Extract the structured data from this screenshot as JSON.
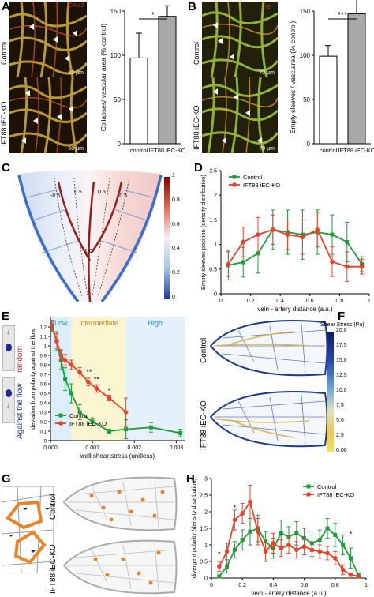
{
  "panels": {
    "A": {
      "letter": "A",
      "image_label_top": "ICAM2",
      "row_labels": [
        "Control",
        "IFT88 iEC-KO"
      ],
      "scalebar_labels": [
        "50 µm",
        "50 µm"
      ],
      "chart": {
        "ylabel": "Collapses/ vascular area (% control)",
        "categories": [
          "control",
          "IFT88 iEC-KO"
        ],
        "values": [
          97,
          144
        ],
        "errors": [
          28,
          12
        ],
        "ylim": [
          0,
          150
        ],
        "yticks": [
          "0",
          "50",
          "100",
          "150"
        ],
        "significance": "*",
        "colors": [
          "#ffffff",
          "#a8a8a8"
        ]
      }
    },
    "B": {
      "letter": "B",
      "image_label_top": "IB",
      "row_labels": [
        "Control",
        "IFT88 iEC-KO"
      ],
      "scalebar_labels": [
        "70 µm",
        "70 µm"
      ],
      "chart": {
        "ylabel": "Empty sleeves / vasc.area (% control)",
        "categories": [
          "control",
          "IFT88 iEC-KO"
        ],
        "values": [
          99,
          147
        ],
        "errors": [
          12,
          16
        ],
        "ylim": [
          0,
          150
        ],
        "yticks": [
          "0",
          "50",
          "100",
          "150"
        ],
        "significance": "***",
        "colors": [
          "#ffffff",
          "#a8a8a8"
        ]
      }
    },
    "C": {
      "letter": "C",
      "contour_labels": [
        "-0.5",
        "0.5",
        "0.5",
        "-0.5",
        "1.0"
      ],
      "colorbar_ticks": [
        "1",
        "0.8",
        "0.6",
        "0.4",
        "0.2",
        "0"
      ]
    },
    "D": {
      "letter": "D",
      "chart_data": {
        "type": "line",
        "ylabel": "Empty sleeves position (density distribution)",
        "xlabel": "vein - artery distance (a.u.)",
        "xlim": [
          0,
          1
        ],
        "ylim": [
          0,
          2.5
        ],
        "xticks": [
          "0",
          "0.2",
          "0.4",
          "0.6",
          "0.8",
          "1"
        ],
        "yticks": [
          "0",
          "0.5",
          "1",
          "1.5",
          "2",
          "2.5"
        ],
        "legend": "top-left",
        "series": [
          {
            "name": "Control",
            "color": "#1e9b3a",
            "marker": "square",
            "x": [
              0.05,
              0.15,
              0.25,
              0.35,
              0.45,
              0.55,
              0.65,
              0.75,
              0.85,
              0.95
            ],
            "y": [
              0.58,
              0.64,
              0.82,
              1.3,
              1.25,
              1.2,
              1.25,
              1.2,
              1.05,
              0.6
            ],
            "err": [
              0.3,
              0.3,
              0.4,
              0.4,
              0.45,
              0.5,
              0.45,
              0.4,
              0.4,
              0.15
            ]
          },
          {
            "name": "IFT88 iEC-KO",
            "color": "#e8402a",
            "marker": "circle",
            "x": [
              0.05,
              0.15,
              0.25,
              0.35,
              0.45,
              0.55,
              0.65,
              0.75,
              0.85,
              0.95
            ],
            "y": [
              0.6,
              1.05,
              1.2,
              1.3,
              1.2,
              1.15,
              1.3,
              0.65,
              0.55,
              0.55
            ],
            "err": [
              0.25,
              0.3,
              0.35,
              0.3,
              0.3,
              0.35,
              0.35,
              0.3,
              0.3,
              0.15
            ]
          }
        ]
      }
    },
    "E": {
      "letter": "E",
      "side_labels": [
        "random",
        "Against the flow"
      ],
      "zone_labels": [
        "Low",
        "intermediate",
        "High"
      ],
      "chart_data": {
        "type": "line",
        "ylabel": "deviation from polarity against the flow",
        "xlabel": "wall shear stress (unitless)",
        "xlim": [
          0,
          0.0032
        ],
        "ylim": [
          0,
          1.3
        ],
        "xticks": [
          "0.000",
          "0.001",
          "0.002",
          "0.003"
        ],
        "yticks": [
          "0",
          "0.1",
          "0.2",
          "0.3",
          "0.4",
          "0.5",
          "0.6",
          "0.7",
          "0.8",
          "0.9",
          "1",
          "1.1",
          "1.2"
        ],
        "legend": "bottom-left",
        "significance_marks": [
          "**",
          "**",
          "*"
        ],
        "series": [
          {
            "name": "Control",
            "color": "#1e9b3a",
            "marker": "square",
            "x": [
              3e-05,
              0.00015,
              0.00025,
              0.00035,
              0.0005,
              0.0007,
              0.001,
              0.0014,
              0.0018,
              0.0024,
              0.0031
            ],
            "y": [
              1.2,
              1.05,
              0.85,
              0.65,
              0.5,
              0.3,
              0.2,
              0.1,
              0.12,
              0.14,
              0.08
            ],
            "err": [
              0.05,
              0.1,
              0.1,
              0.12,
              0.1,
              0.08,
              0.04,
              0.02,
              0.1,
              0.05,
              0.04
            ]
          },
          {
            "name": "IFT88 iEC-KO",
            "color": "#e8402a",
            "marker": "circle",
            "x": [
              3e-05,
              0.00015,
              0.00025,
              0.00035,
              0.0005,
              0.0007,
              0.0009,
              0.0011,
              0.0014,
              0.0018
            ],
            "y": [
              1.22,
              1.05,
              0.9,
              0.85,
              0.8,
              0.72,
              0.62,
              0.55,
              0.45,
              0.3
            ],
            "err": [
              0.05,
              0.08,
              0.06,
              0.06,
              0.05,
              0.05,
              0.04,
              0.04,
              0.03,
              0.15
            ]
          }
        ]
      }
    },
    "F": {
      "letter": "F",
      "row_labels": [
        "Control",
        "IFT88 iEC-KO"
      ],
      "colorbar_title": "Shear Stress (Pa)",
      "colorbar_ticks": [
        "20.0",
        "17.5",
        "15.0",
        "12.5",
        "10.0",
        "7.5",
        "5.0",
        "2.5",
        "0.00"
      ]
    },
    "G": {
      "letter": "G",
      "row_labels": [
        "Control",
        "IFT88 iEC-KO"
      ]
    },
    "H": {
      "letter": "H",
      "chart_data": {
        "type": "line",
        "ylabel": "divergent polarity (density distribution)",
        "xlabel": "vein - artery distance (a.u.)",
        "xlim": [
          0,
          1
        ],
        "ylim": [
          0,
          3.0
        ],
        "xticks": [
          "0",
          "0.2",
          "0.4",
          "0.6",
          "0.8",
          "1"
        ],
        "yticks": [
          "0",
          "0.5",
          "1",
          "1.5",
          "2",
          "2.5",
          "3"
        ],
        "legend": "top-right",
        "significance_marks": [
          "*",
          "*",
          "*"
        ],
        "series": [
          {
            "name": "Control",
            "color": "#1e9b3a",
            "marker": "square",
            "x": [
              0.05,
              0.1,
              0.15,
              0.2,
              0.25,
              0.3,
              0.35,
              0.4,
              0.45,
              0.5,
              0.55,
              0.6,
              0.65,
              0.7,
              0.75,
              0.8,
              0.85,
              0.9,
              0.95
            ],
            "y": [
              0.05,
              0.35,
              0.85,
              1.15,
              1.4,
              1.5,
              1.1,
              0.9,
              1.35,
              1.25,
              1.35,
              1.2,
              1.05,
              1.15,
              1.5,
              1.3,
              1.0,
              0.6,
              0.1
            ],
            "err": [
              0.05,
              0.2,
              0.25,
              0.3,
              0.4,
              0.4,
              0.3,
              0.3,
              0.4,
              0.3,
              0.35,
              0.3,
              0.25,
              0.3,
              0.3,
              0.35,
              0.3,
              0.3,
              0.05
            ]
          },
          {
            "name": "IFT88 iEC-KO",
            "color": "#e8402a",
            "marker": "circle",
            "x": [
              0.05,
              0.1,
              0.15,
              0.2,
              0.25,
              0.3,
              0.35,
              0.4,
              0.45,
              0.5,
              0.55,
              0.6,
              0.65,
              0.7,
              0.75,
              0.8,
              0.85,
              0.9,
              0.95
            ],
            "y": [
              0.35,
              0.8,
              1.75,
              1.95,
              2.3,
              1.4,
              0.8,
              1.05,
              0.9,
              1.0,
              0.85,
              0.95,
              0.85,
              0.8,
              0.75,
              0.6,
              0.25,
              0.1,
              0.05
            ],
            "err": [
              0.15,
              0.25,
              0.3,
              0.3,
              0.5,
              0.4,
              0.3,
              0.3,
              0.25,
              0.25,
              0.25,
              0.25,
              0.2,
              0.2,
              0.2,
              0.2,
              0.15,
              0.05,
              0.03
            ]
          }
        ]
      }
    }
  }
}
